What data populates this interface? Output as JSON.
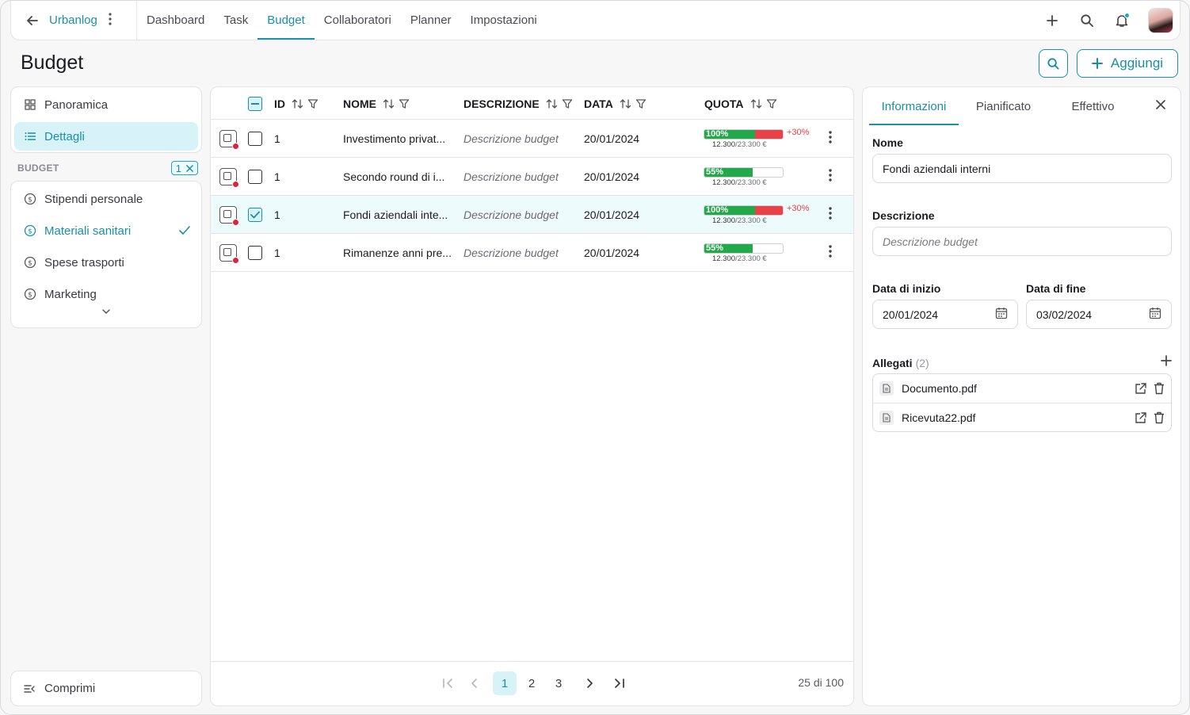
{
  "colors": {
    "accent": "#1a8fa8",
    "accent_bg": "#d8f3f8",
    "success": "#21a94a",
    "danger": "#e84147"
  },
  "topbar": {
    "app_name": "Urbanlog",
    "tabs": [
      {
        "label": "Dashboard"
      },
      {
        "label": "Task"
      },
      {
        "label": "Budget",
        "active": true
      },
      {
        "label": "Collaboratori"
      },
      {
        "label": "Planner"
      },
      {
        "label": "Impostazioni"
      }
    ],
    "icons": [
      "back-arrow-icon",
      "kebab-icon",
      "plus-icon",
      "search-icon",
      "bell-icon",
      "avatar"
    ]
  },
  "page": {
    "title": "Budget",
    "add_label": "Aggiungi"
  },
  "sidebar": {
    "nav": [
      {
        "label": "Panoramica",
        "icon": "grid-icon"
      },
      {
        "label": "Dettagli",
        "icon": "list-icon",
        "active": true
      }
    ],
    "section_label": "BUDGET",
    "filter_count": "1",
    "items": [
      {
        "label": "Stipendi personale"
      },
      {
        "label": "Materiali sanitari",
        "selected": true
      },
      {
        "label": "Spese trasporti"
      },
      {
        "label": "Marketing"
      }
    ],
    "collapse_label": "Comprimi"
  },
  "table": {
    "headers": {
      "id": "ID",
      "nome": "NOME",
      "descrizione": "DESCRIZIONE",
      "data": "DATA",
      "quota": "QUOTA"
    },
    "rows": [
      {
        "id": "1",
        "nome": "Investimento privat...",
        "descrizione": "Descrizione budget",
        "data": "20/01/2024",
        "pct": "100%",
        "fill": 0.65,
        "over": true,
        "extra": "+30%",
        "amount": "12.300",
        "total": "/23.300 €",
        "checked": false
      },
      {
        "id": "1",
        "nome": "Secondo round di i...",
        "descrizione": "Descrizione budget",
        "data": "20/01/2024",
        "pct": "55%",
        "fill": 0.62,
        "over": false,
        "extra": "",
        "amount": "12.300",
        "total": "/23.300 €",
        "checked": false
      },
      {
        "id": "1",
        "nome": "Fondi aziendali inte...",
        "descrizione": "Descrizione budget",
        "data": "20/01/2024",
        "pct": "100%",
        "fill": 0.65,
        "over": true,
        "extra": "+30%",
        "amount": "12.300",
        "total": "/23.300 €",
        "checked": true
      },
      {
        "id": "1",
        "nome": "Rimanenze anni pre...",
        "descrizione": "Descrizione budget",
        "data": "20/01/2024",
        "pct": "55%",
        "fill": 0.62,
        "over": false,
        "extra": "",
        "amount": "12.300",
        "total": "/23.300 €",
        "checked": false
      }
    ],
    "pagination": {
      "pages": [
        "1",
        "2",
        "3"
      ],
      "current": "1",
      "count_label": "25 di 100"
    }
  },
  "panel": {
    "tabs": [
      {
        "label": "Informazioni",
        "active": true
      },
      {
        "label": "Pianificato"
      },
      {
        "label": "Effettivo"
      }
    ],
    "nome_label": "Nome",
    "nome_value": "Fondi aziendali interni",
    "descrizione_label": "Descrizione",
    "descrizione_placeholder": "Descrizione budget",
    "inizio_label": "Data di inizio",
    "inizio_value": "20/01/2024",
    "fine_label": "Data di fine",
    "fine_value": "03/02/2024",
    "allegati_label": "Allegati",
    "allegati_count": "(2)",
    "files": [
      {
        "name": "Documento.pdf"
      },
      {
        "name": "Ricevuta22.pdf"
      }
    ]
  }
}
